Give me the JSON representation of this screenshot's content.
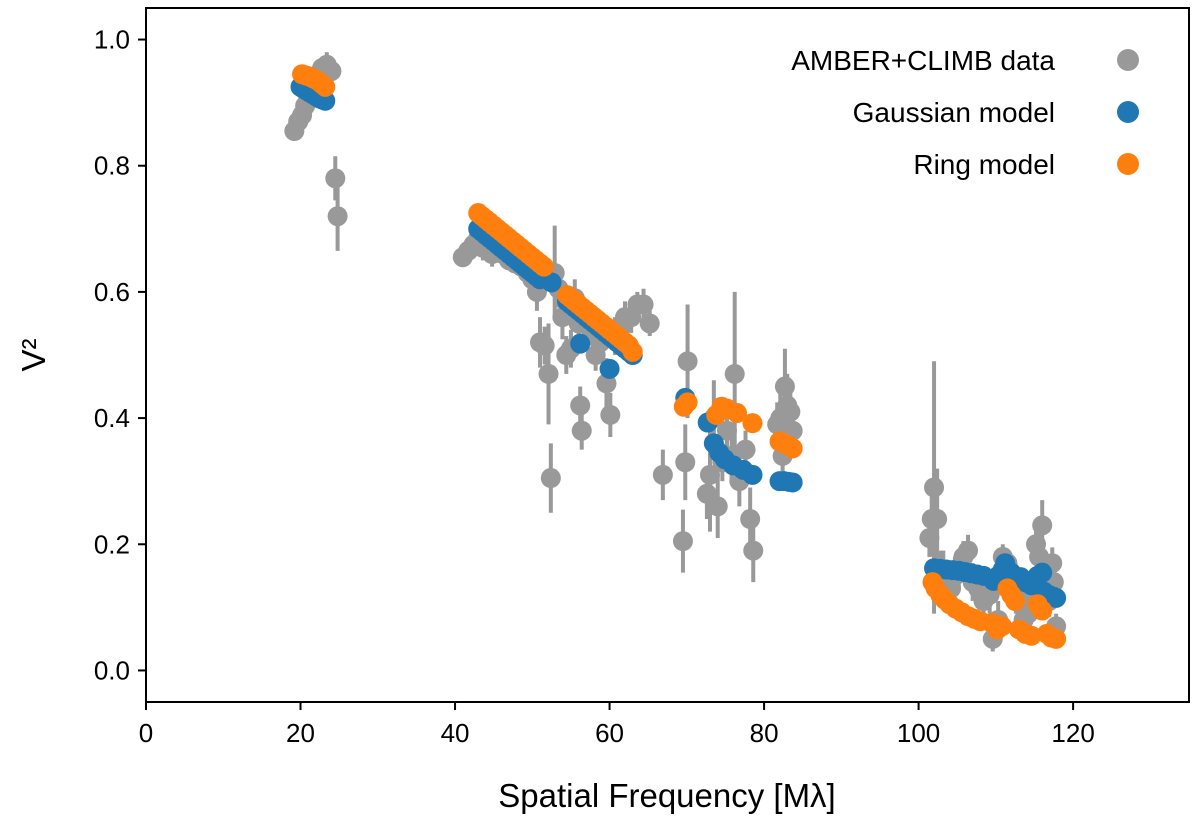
{
  "chart_data": {
    "type": "scatter",
    "xlabel": "Spatial Frequency [Mλ]",
    "ylabel": "V²",
    "xlim": [
      0,
      135
    ],
    "ylim": [
      -0.05,
      1.05
    ],
    "xticks": [
      0,
      20,
      40,
      60,
      80,
      100,
      120
    ],
    "yticks": [
      0.0,
      0.2,
      0.4,
      0.6,
      0.8,
      1.0
    ],
    "xtick_labels": [
      "0",
      "20",
      "40",
      "60",
      "80",
      "100",
      "120"
    ],
    "ytick_labels": [
      "0.0",
      "0.2",
      "0.4",
      "0.6",
      "0.8",
      "1.0"
    ],
    "grid": false,
    "legend_position": "top-right",
    "series": [
      {
        "name": "AMBER+CLIMB data",
        "color": "#999999",
        "has_error_bars": true,
        "points": [
          [
            19.2,
            0.855,
            0.01
          ],
          [
            19.7,
            0.87,
            0.01
          ],
          [
            20.2,
            0.88,
            0.01
          ],
          [
            20.6,
            0.895,
            0.01
          ],
          [
            21.0,
            0.905,
            0.01
          ],
          [
            21.5,
            0.915,
            0.01
          ],
          [
            21.9,
            0.93,
            0.01
          ],
          [
            22.3,
            0.945,
            0.012
          ],
          [
            22.8,
            0.955,
            0.015
          ],
          [
            23.4,
            0.96,
            0.02
          ],
          [
            24.0,
            0.95,
            0.01
          ],
          [
            24.5,
            0.78,
            0.035
          ],
          [
            24.8,
            0.72,
            0.055
          ],
          [
            41.0,
            0.655,
            0.012
          ],
          [
            41.7,
            0.665,
            0.015
          ],
          [
            42.4,
            0.675,
            0.015
          ],
          [
            43.0,
            0.685,
            0.015
          ],
          [
            43.6,
            0.67,
            0.02
          ],
          [
            44.2,
            0.68,
            0.02
          ],
          [
            44.8,
            0.66,
            0.02
          ],
          [
            45.5,
            0.665,
            0.015
          ],
          [
            46.2,
            0.66,
            0.015
          ],
          [
            47.0,
            0.65,
            0.015
          ],
          [
            47.8,
            0.645,
            0.015
          ],
          [
            48.6,
            0.64,
            0.015
          ],
          [
            49.4,
            0.63,
            0.015
          ],
          [
            50.0,
            0.62,
            0.015
          ],
          [
            50.6,
            0.6,
            0.03
          ],
          [
            51.0,
            0.52,
            0.04
          ],
          [
            51.6,
            0.515,
            0.03
          ],
          [
            52.1,
            0.47,
            0.08
          ],
          [
            52.4,
            0.305,
            0.055
          ],
          [
            52.9,
            0.63,
            0.075
          ],
          [
            53.4,
            0.605,
            0.03
          ],
          [
            53.9,
            0.56,
            0.035
          ],
          [
            54.4,
            0.5,
            0.03
          ],
          [
            55.0,
            0.51,
            0.03
          ],
          [
            55.5,
            0.59,
            0.03
          ],
          [
            56.0,
            0.55,
            0.03
          ],
          [
            56.2,
            0.42,
            0.03
          ],
          [
            56.4,
            0.38,
            0.03
          ],
          [
            57.0,
            0.56,
            0.025
          ],
          [
            57.6,
            0.54,
            0.025
          ],
          [
            58.2,
            0.5,
            0.025
          ],
          [
            58.8,
            0.52,
            0.02
          ],
          [
            59.6,
            0.455,
            0.04
          ],
          [
            60.1,
            0.405,
            0.035
          ],
          [
            60.7,
            0.53,
            0.03
          ],
          [
            61.3,
            0.54,
            0.025
          ],
          [
            62.0,
            0.56,
            0.025
          ],
          [
            62.8,
            0.56,
            0.025
          ],
          [
            63.6,
            0.58,
            0.02
          ],
          [
            64.4,
            0.58,
            0.025
          ],
          [
            65.2,
            0.55,
            0.02
          ],
          [
            66.9,
            0.31,
            0.04
          ],
          [
            69.5,
            0.205,
            0.05
          ],
          [
            69.8,
            0.33,
            0.06
          ],
          [
            70.1,
            0.49,
            0.09
          ],
          [
            72.6,
            0.28,
            0.04
          ],
          [
            73.0,
            0.31,
            0.09
          ],
          [
            73.5,
            0.4,
            0.06
          ],
          [
            74.0,
            0.26,
            0.05
          ],
          [
            74.6,
            0.33,
            0.03
          ],
          [
            75.2,
            0.38,
            0.05
          ],
          [
            75.8,
            0.34,
            0.04
          ],
          [
            76.2,
            0.47,
            0.13
          ],
          [
            76.8,
            0.3,
            0.04
          ],
          [
            77.6,
            0.35,
            0.03
          ],
          [
            78.2,
            0.24,
            0.05
          ],
          [
            78.6,
            0.19,
            0.05
          ],
          [
            81.7,
            0.39,
            0.035
          ],
          [
            82.1,
            0.4,
            0.04
          ],
          [
            82.4,
            0.34,
            0.03
          ],
          [
            82.7,
            0.45,
            0.06
          ],
          [
            83.0,
            0.42,
            0.05
          ],
          [
            83.4,
            0.41,
            0.03
          ],
          [
            83.7,
            0.38,
            0.04
          ],
          [
            101.4,
            0.21,
            0.03
          ],
          [
            101.7,
            0.24,
            0.06
          ],
          [
            102.0,
            0.29,
            0.2
          ],
          [
            102.4,
            0.24,
            0.08
          ],
          [
            102.8,
            0.15,
            0.04
          ],
          [
            103.2,
            0.16,
            0.03
          ],
          [
            103.7,
            0.14,
            0.03
          ],
          [
            104.2,
            0.13,
            0.025
          ],
          [
            104.7,
            0.15,
            0.03
          ],
          [
            105.2,
            0.16,
            0.03
          ],
          [
            105.8,
            0.18,
            0.025
          ],
          [
            106.4,
            0.19,
            0.025
          ],
          [
            107.0,
            0.14,
            0.03
          ],
          [
            107.7,
            0.13,
            0.025
          ],
          [
            108.4,
            0.11,
            0.025
          ],
          [
            109.2,
            0.12,
            0.03
          ],
          [
            109.6,
            0.05,
            0.02
          ],
          [
            110.3,
            0.08,
            0.03
          ],
          [
            110.9,
            0.18,
            0.02
          ],
          [
            111.5,
            0.17,
            0.02
          ],
          [
            112.0,
            0.14,
            0.03
          ],
          [
            112.6,
            0.12,
            0.03
          ],
          [
            113.1,
            0.11,
            0.025
          ],
          [
            113.6,
            0.08,
            0.03
          ],
          [
            114.2,
            0.09,
            0.025
          ],
          [
            114.7,
            0.12,
            0.025
          ],
          [
            115.2,
            0.2,
            0.03
          ],
          [
            115.6,
            0.18,
            0.04
          ],
          [
            116.0,
            0.23,
            0.04
          ],
          [
            116.4,
            0.14,
            0.03
          ],
          [
            116.9,
            0.11,
            0.025
          ],
          [
            117.3,
            0.17,
            0.025
          ],
          [
            117.5,
            0.14,
            0.025
          ],
          [
            117.8,
            0.07,
            0.02
          ]
        ]
      },
      {
        "name": "Gaussian model",
        "color": "#1f77b4",
        "points": [
          [
            20.0,
            0.925
          ],
          [
            20.4,
            0.922
          ],
          [
            20.8,
            0.919
          ],
          [
            21.2,
            0.916
          ],
          [
            21.6,
            0.913
          ],
          [
            22.0,
            0.91
          ],
          [
            22.4,
            0.907
          ],
          [
            22.8,
            0.905
          ],
          [
            23.2,
            0.903
          ],
          [
            43.0,
            0.7
          ],
          [
            43.5,
            0.695
          ],
          [
            44.0,
            0.69
          ],
          [
            44.5,
            0.685
          ],
          [
            45.0,
            0.68
          ],
          [
            45.5,
            0.675
          ],
          [
            46.0,
            0.67
          ],
          [
            46.5,
            0.665
          ],
          [
            47.0,
            0.66
          ],
          [
            47.5,
            0.655
          ],
          [
            48.0,
            0.65
          ],
          [
            48.5,
            0.645
          ],
          [
            49.0,
            0.64
          ],
          [
            49.5,
            0.635
          ],
          [
            50.0,
            0.63
          ],
          [
            50.5,
            0.625
          ],
          [
            51.0,
            0.62
          ],
          [
            52.5,
            0.615
          ],
          [
            54.5,
            0.585
          ],
          [
            55.0,
            0.58
          ],
          [
            55.5,
            0.575
          ],
          [
            56.0,
            0.57
          ],
          [
            56.5,
            0.565
          ],
          [
            57.0,
            0.56
          ],
          [
            57.5,
            0.555
          ],
          [
            58.0,
            0.55
          ],
          [
            58.5,
            0.545
          ],
          [
            59.0,
            0.54
          ],
          [
            59.5,
            0.535
          ],
          [
            60.0,
            0.53
          ],
          [
            60.5,
            0.525
          ],
          [
            61.0,
            0.52
          ],
          [
            61.5,
            0.515
          ],
          [
            62.0,
            0.51
          ],
          [
            62.5,
            0.505
          ],
          [
            63.0,
            0.5
          ],
          [
            56.2,
            0.518
          ],
          [
            60.0,
            0.478
          ],
          [
            69.8,
            0.432
          ],
          [
            72.7,
            0.393
          ],
          [
            73.5,
            0.36
          ],
          [
            74.2,
            0.345
          ],
          [
            74.9,
            0.335
          ],
          [
            76.0,
            0.325
          ],
          [
            77.3,
            0.318
          ],
          [
            78.5,
            0.31
          ],
          [
            82.0,
            0.3
          ],
          [
            82.6,
            0.3
          ],
          [
            83.2,
            0.299
          ],
          [
            83.7,
            0.298
          ],
          [
            102.0,
            0.162
          ],
          [
            102.8,
            0.161
          ],
          [
            103.6,
            0.16
          ],
          [
            104.4,
            0.159
          ],
          [
            105.2,
            0.158
          ],
          [
            106.0,
            0.156
          ],
          [
            106.8,
            0.154
          ],
          [
            107.6,
            0.152
          ],
          [
            108.4,
            0.15
          ],
          [
            109.7,
            0.142
          ],
          [
            110.3,
            0.15
          ],
          [
            110.9,
            0.16
          ],
          [
            111.2,
            0.17
          ],
          [
            112.0,
            0.155
          ],
          [
            112.8,
            0.148
          ],
          [
            113.2,
            0.148
          ],
          [
            113.8,
            0.14
          ],
          [
            114.6,
            0.135
          ],
          [
            115.4,
            0.15
          ],
          [
            116.0,
            0.155
          ],
          [
            116.2,
            0.125
          ],
          [
            116.8,
            0.12
          ],
          [
            117.4,
            0.117
          ],
          [
            117.8,
            0.115
          ]
        ]
      },
      {
        "name": "Ring model",
        "color": "#ff7f0e",
        "points": [
          [
            20.2,
            0.945
          ],
          [
            20.7,
            0.943
          ],
          [
            21.2,
            0.941
          ],
          [
            21.7,
            0.938
          ],
          [
            22.2,
            0.935
          ],
          [
            22.7,
            0.93
          ],
          [
            23.2,
            0.925
          ],
          [
            43.0,
            0.725
          ],
          [
            43.5,
            0.72
          ],
          [
            44.0,
            0.715
          ],
          [
            44.5,
            0.71
          ],
          [
            45.0,
            0.705
          ],
          [
            45.5,
            0.7
          ],
          [
            46.0,
            0.695
          ],
          [
            46.5,
            0.69
          ],
          [
            47.0,
            0.685
          ],
          [
            47.5,
            0.68
          ],
          [
            48.0,
            0.675
          ],
          [
            48.5,
            0.67
          ],
          [
            49.0,
            0.665
          ],
          [
            49.5,
            0.66
          ],
          [
            50.0,
            0.655
          ],
          [
            50.5,
            0.65
          ],
          [
            51.0,
            0.645
          ],
          [
            51.5,
            0.64
          ],
          [
            54.5,
            0.595
          ],
          [
            55.0,
            0.59
          ],
          [
            55.5,
            0.585
          ],
          [
            56.0,
            0.58
          ],
          [
            56.5,
            0.575
          ],
          [
            57.0,
            0.57
          ],
          [
            57.5,
            0.565
          ],
          [
            58.0,
            0.56
          ],
          [
            58.5,
            0.555
          ],
          [
            59.0,
            0.55
          ],
          [
            59.5,
            0.545
          ],
          [
            60.0,
            0.54
          ],
          [
            60.5,
            0.535
          ],
          [
            61.0,
            0.53
          ],
          [
            61.5,
            0.525
          ],
          [
            62.0,
            0.52
          ],
          [
            62.5,
            0.515
          ],
          [
            63.0,
            0.505
          ],
          [
            69.6,
            0.418
          ],
          [
            70.1,
            0.425
          ],
          [
            73.8,
            0.405
          ],
          [
            74.5,
            0.418
          ],
          [
            75.2,
            0.415
          ],
          [
            76.5,
            0.408
          ],
          [
            78.5,
            0.392
          ],
          [
            82.0,
            0.363
          ],
          [
            82.6,
            0.36
          ],
          [
            83.2,
            0.356
          ],
          [
            83.7,
            0.352
          ],
          [
            101.8,
            0.14
          ],
          [
            102.2,
            0.13
          ],
          [
            102.8,
            0.12
          ],
          [
            103.4,
            0.112
          ],
          [
            104.0,
            0.105
          ],
          [
            104.8,
            0.098
          ],
          [
            105.6,
            0.092
          ],
          [
            106.4,
            0.086
          ],
          [
            107.2,
            0.082
          ],
          [
            108.0,
            0.078
          ],
          [
            109.5,
            0.075
          ],
          [
            110.2,
            0.065
          ],
          [
            110.8,
            0.07
          ],
          [
            111.5,
            0.13
          ],
          [
            112.0,
            0.12
          ],
          [
            112.5,
            0.11
          ],
          [
            113.0,
            0.065
          ],
          [
            113.8,
            0.058
          ],
          [
            114.6,
            0.055
          ],
          [
            115.4,
            0.105
          ],
          [
            116.0,
            0.095
          ],
          [
            116.6,
            0.058
          ],
          [
            117.2,
            0.052
          ],
          [
            117.8,
            0.05
          ]
        ]
      }
    ]
  }
}
